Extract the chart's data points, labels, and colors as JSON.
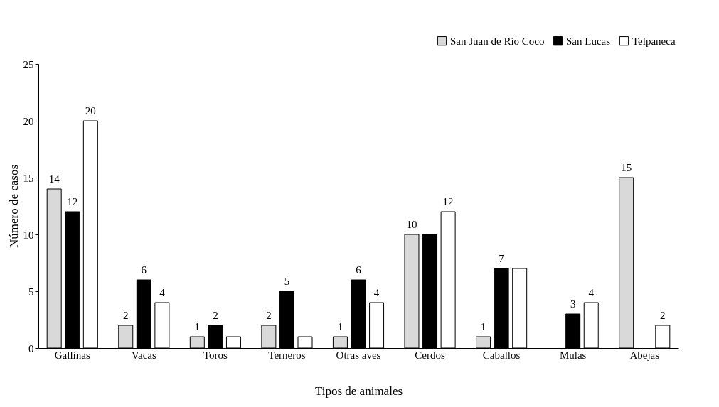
{
  "chart_data": {
    "type": "bar",
    "xlabel": "Tipos de animales",
    "ylabel": "Número de casos",
    "categories": [
      "Gallinas",
      "Vacas",
      "Toros",
      "Terneros",
      "Otras aves",
      "Cerdos",
      "Caballos",
      "Mulas",
      "Abejas"
    ],
    "series": [
      {
        "name": "San Juan de Río Coco",
        "color": "#d9d9d9",
        "values": [
          14,
          2,
          1,
          2,
          1,
          10,
          1,
          null,
          15
        ],
        "value_labels": [
          "14",
          "2",
          "1",
          "2",
          "1",
          "10",
          "1",
          null,
          "15"
        ]
      },
      {
        "name": "San Lucas",
        "color": "#000000",
        "values": [
          12,
          6,
          2,
          5,
          6,
          10,
          7,
          3,
          null
        ],
        "value_labels": [
          "12",
          "6",
          "2",
          "5",
          "6",
          null,
          "7",
          "3",
          null
        ]
      },
      {
        "name": "Telpaneca",
        "color": "#ffffff",
        "values": [
          20,
          4,
          1,
          1,
          4,
          12,
          7,
          4,
          2
        ],
        "value_labels": [
          "20",
          "4",
          null,
          null,
          "4",
          "12",
          null,
          "4",
          "2"
        ]
      }
    ],
    "ylim": [
      0,
      25
    ],
    "yticks": [
      0,
      5,
      10,
      15,
      20,
      25
    ],
    "grid": false,
    "legend": "top right"
  }
}
